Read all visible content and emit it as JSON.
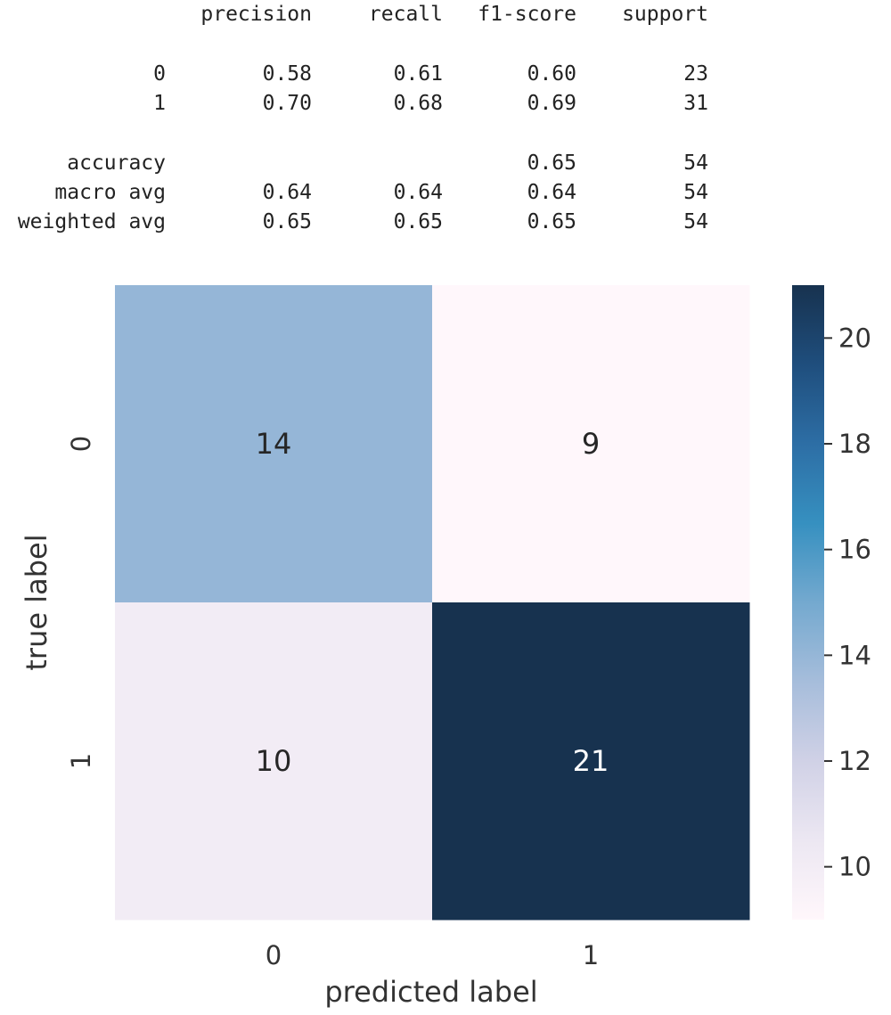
{
  "report": {
    "headers": [
      "precision",
      "recall",
      "f1-score",
      "support"
    ],
    "rows": [
      {
        "label": "0",
        "precision": "0.58",
        "recall": "0.61",
        "f1": "0.60",
        "support": "23"
      },
      {
        "label": "1",
        "precision": "0.70",
        "recall": "0.68",
        "f1": "0.69",
        "support": "31"
      },
      {
        "label": "accuracy",
        "precision": "",
        "recall": "",
        "f1": "0.65",
        "support": "54"
      },
      {
        "label": "macro avg",
        "precision": "0.64",
        "recall": "0.64",
        "f1": "0.64",
        "support": "54"
      },
      {
        "label": "weighted avg",
        "precision": "0.65",
        "recall": "0.65",
        "f1": "0.65",
        "support": "54"
      }
    ]
  },
  "chart_data": {
    "type": "heatmap",
    "x_categories": [
      "0",
      "1"
    ],
    "y_categories": [
      "0",
      "1"
    ],
    "values": [
      [
        14,
        9
      ],
      [
        10,
        21
      ]
    ],
    "xlabel": "predicted label",
    "ylabel": "true label",
    "colorbar": {
      "min": 9,
      "max": 21,
      "ticks": [
        10,
        12,
        14,
        16,
        18,
        20
      ]
    },
    "colormap": [
      "#fff7fb",
      "#ece7f2",
      "#d0d1e6",
      "#a6bddb",
      "#74a9cf",
      "#3690c0",
      "#2d6ea5",
      "#1f4e7d",
      "#17324f"
    ],
    "annotation_colors": {
      "light_cell": "#262626",
      "dark_cell": "#ffffff"
    }
  }
}
